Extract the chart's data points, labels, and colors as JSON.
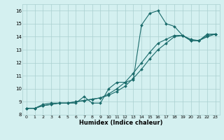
{
  "xlabel": "Humidex (Indice chaleur)",
  "bg_color": "#d4f0f0",
  "grid_color": "#aacfcf",
  "line_color": "#1a6b6b",
  "xlim": [
    -0.5,
    23.5
  ],
  "ylim": [
    8.0,
    16.5
  ],
  "xticks": [
    0,
    1,
    2,
    3,
    4,
    5,
    6,
    7,
    8,
    9,
    10,
    11,
    12,
    13,
    14,
    15,
    16,
    17,
    18,
    19,
    20,
    21,
    22,
    23
  ],
  "yticks": [
    8,
    9,
    10,
    11,
    12,
    13,
    14,
    15,
    16
  ],
  "series": {
    "smooth1_x": [
      0,
      1,
      2,
      3,
      4,
      5,
      6,
      7,
      8,
      9,
      10,
      11,
      12,
      13,
      14,
      15,
      16,
      17,
      18,
      19,
      20,
      21,
      22,
      23
    ],
    "smooth1_y": [
      8.5,
      8.5,
      8.7,
      8.8,
      8.9,
      8.9,
      9.0,
      9.1,
      9.2,
      9.3,
      9.5,
      9.8,
      10.2,
      10.8,
      11.5,
      12.3,
      13.0,
      13.5,
      14.0,
      14.1,
      13.8,
      13.7,
      14.0,
      14.2
    ],
    "smooth2_x": [
      0,
      1,
      2,
      3,
      4,
      5,
      6,
      7,
      8,
      9,
      10,
      11,
      12,
      13,
      14,
      15,
      16,
      17,
      18,
      19,
      20,
      21,
      22,
      23
    ],
    "smooth2_y": [
      8.5,
      8.5,
      8.7,
      8.8,
      8.9,
      8.9,
      9.0,
      9.1,
      9.2,
      9.3,
      9.6,
      10.0,
      10.5,
      11.2,
      12.0,
      12.8,
      13.5,
      13.8,
      14.1,
      14.1,
      13.7,
      13.7,
      14.1,
      14.2
    ],
    "jagged_x": [
      0,
      1,
      2,
      3,
      4,
      5,
      6,
      7,
      8,
      9,
      10,
      11,
      12,
      13,
      14,
      15,
      16,
      17,
      18,
      19,
      20,
      21,
      22,
      23
    ],
    "jagged_y": [
      8.5,
      8.5,
      8.8,
      8.9,
      8.9,
      8.9,
      8.9,
      9.4,
      8.9,
      8.9,
      10.0,
      10.5,
      10.5,
      10.7,
      14.9,
      15.8,
      16.0,
      15.0,
      14.8,
      14.1,
      13.7,
      13.7,
      14.2,
      14.2
    ]
  }
}
